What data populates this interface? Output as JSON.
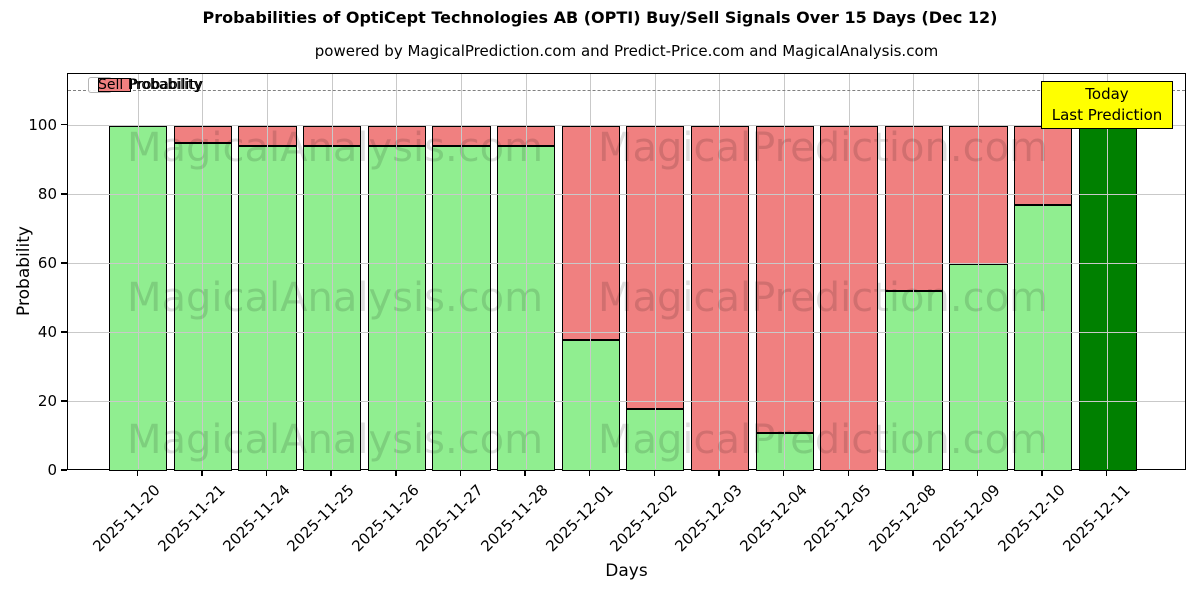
{
  "figure": {
    "title": "Probabilities of OptiCept Technologies AB (OPTI) Buy/Sell Signals Over 15 Days (Dec 12)",
    "subtitle": "powered by MagicalPrediction.com and Predict-Price.com and MagicalAnalysis.com",
    "watermark_left": "MagicalAnalysis.com",
    "watermark_right": "MagicalPrediction.com"
  },
  "chart_data": {
    "type": "bar",
    "stacked": true,
    "title": "Probabilities of OptiCept Technologies AB (OPTI) Buy/Sell Signals Over 15 Days (Dec 12)",
    "subtitle": "powered by MagicalPrediction.com and Predict-Price.com and MagicalAnalysis.com",
    "xlabel": "Days",
    "ylabel": "Probability",
    "ylim": [
      0,
      115
    ],
    "yticks": [
      0,
      20,
      40,
      60,
      80,
      100
    ],
    "grid": true,
    "threshold_line_y": 110,
    "legend_position": "upper left",
    "categories": [
      "2025-11-20",
      "2025-11-21",
      "2025-11-24",
      "2025-11-25",
      "2025-11-26",
      "2025-11-27",
      "2025-11-28",
      "2025-12-01",
      "2025-12-02",
      "2025-12-03",
      "2025-12-04",
      "2025-12-05",
      "2025-12-08",
      "2025-12-09",
      "2025-12-10",
      "2025-12-11"
    ],
    "series": [
      {
        "name": "Buy Probability",
        "color": "#90ee90",
        "values": [
          100,
          95,
          94,
          94,
          94,
          94,
          94,
          38,
          18,
          0,
          11,
          0,
          52,
          60,
          77,
          100
        ]
      },
      {
        "name": "Sell Probability",
        "color": "#f08080",
        "values": [
          0,
          5,
          6,
          6,
          6,
          6,
          6,
          62,
          82,
          100,
          89,
          100,
          48,
          40,
          23,
          0
        ]
      }
    ],
    "today": {
      "index": 15,
      "color": "#008000"
    },
    "annotation": {
      "lines": [
        "Today",
        "Last Prediction"
      ],
      "bg": "#ffff00"
    }
  },
  "colors": {
    "grid": "#c9c9c9",
    "dashed_line": "#808080",
    "spine": "#000000",
    "watermark": "rgba(0,0,0,0.13)"
  }
}
